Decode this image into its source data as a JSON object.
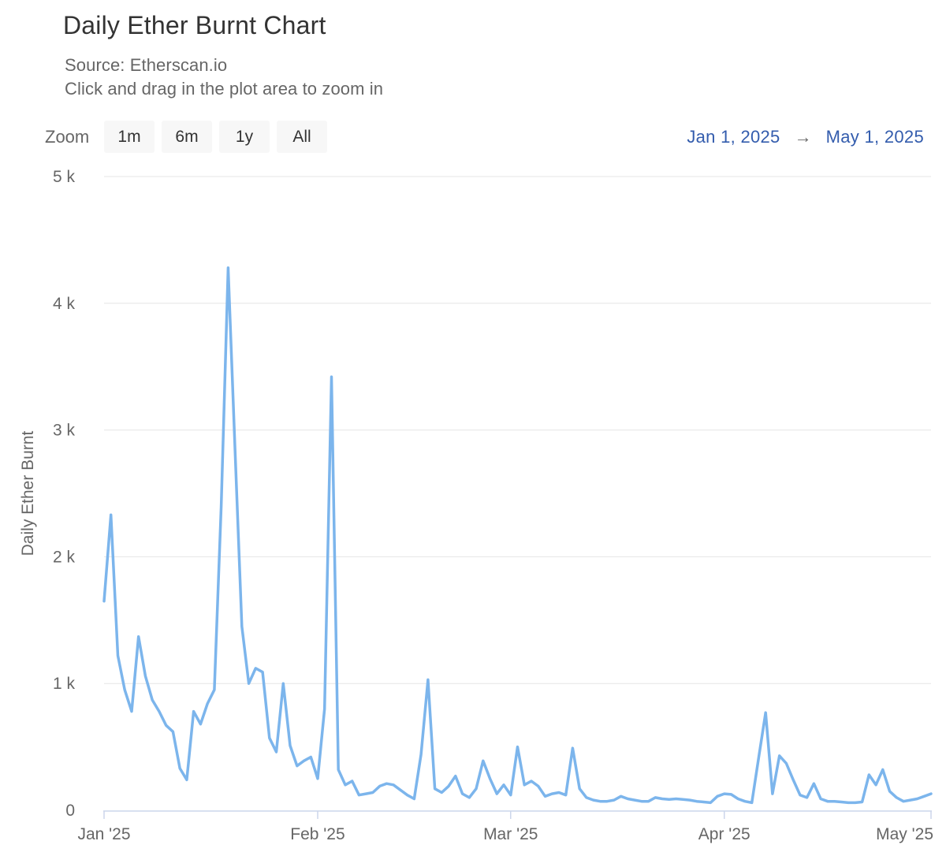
{
  "header": {
    "title": "Daily Ether Burnt Chart",
    "source": "Source: Etherscan.io",
    "hint": "Click and drag in the plot area to zoom in"
  },
  "toolbar": {
    "zoom_label": "Zoom",
    "buttons": [
      "1m",
      "6m",
      "1y",
      "All"
    ],
    "range_from": "Jan 1, 2025",
    "range_arrow": "→",
    "range_to": "May 1, 2025"
  },
  "chart_data": {
    "type": "line",
    "title": "Daily Ether Burnt Chart",
    "ylabel": "Daily Ether Burnt",
    "xlabel": "",
    "series_name": "Daily Ether Burnt",
    "legend": "off",
    "grid": "horizontal-only",
    "line_color": "#7cb5ec",
    "grid_color": "#e6e6e6",
    "axis_color": "#ccd6eb",
    "label_color": "#666666",
    "ylim": [
      0,
      5000
    ],
    "y_ticks": [
      {
        "label": "0",
        "value": 0
      },
      {
        "label": "1 k",
        "value": 1000
      },
      {
        "label": "2 k",
        "value": 2000
      },
      {
        "label": "3 k",
        "value": 3000
      },
      {
        "label": "4 k",
        "value": 4000
      },
      {
        "label": "5 k",
        "value": 5000
      }
    ],
    "x_ticks": [
      {
        "label": "Jan '25",
        "day": 0
      },
      {
        "label": "Feb '25",
        "day": 31
      },
      {
        "label": "Mar '25",
        "day": 59
      },
      {
        "label": "Apr '25",
        "day": 90
      },
      {
        "label": "May '25",
        "day": 120
      }
    ],
    "start_date": "2025-01-01",
    "end_date": "2025-05-01",
    "values": [
      1650,
      2330,
      1220,
      950,
      780,
      1370,
      1060,
      870,
      780,
      670,
      620,
      330,
      240,
      780,
      680,
      840,
      950,
      2400,
      4280,
      2850,
      1450,
      1000,
      1120,
      1090,
      570,
      460,
      1000,
      510,
      350,
      390,
      420,
      250,
      800,
      3420,
      320,
      200,
      230,
      120,
      130,
      140,
      190,
      210,
      200,
      160,
      120,
      90,
      440,
      1030,
      170,
      140,
      190,
      270,
      130,
      100,
      170,
      390,
      250,
      130,
      200,
      120,
      500,
      200,
      230,
      190,
      110,
      130,
      140,
      120,
      490,
      170,
      100,
      80,
      70,
      70,
      80,
      110,
      90,
      80,
      70,
      70,
      100,
      90,
      85,
      90,
      85,
      80,
      70,
      65,
      60,
      110,
      130,
      125,
      90,
      70,
      60,
      420,
      770,
      130,
      430,
      370,
      240,
      120,
      100,
      210,
      90,
      70,
      70,
      65,
      60,
      60,
      65,
      280,
      200,
      320,
      150,
      100,
      70,
      80,
      90,
      110,
      130
    ]
  }
}
